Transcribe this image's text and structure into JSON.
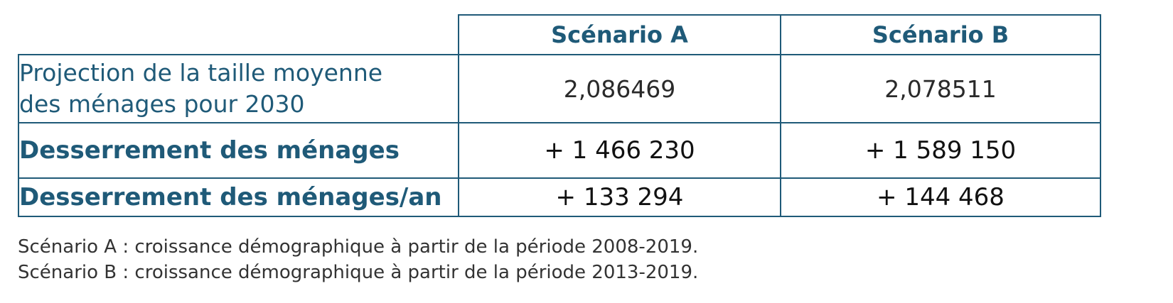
{
  "table": {
    "columns": [
      "Scénario A",
      "Scénario B"
    ],
    "rows": [
      {
        "label": "Projection de la taille moyenne des ménages pour 2030",
        "label_line1": "Projection de la taille moyenne",
        "label_line2": "des ménages pour 2030",
        "values": [
          "2,086469",
          "2,078511"
        ]
      },
      {
        "label": "Desserrement des ménages",
        "values": [
          "+ 1 466 230",
          "+ 1 589 150"
        ]
      },
      {
        "label": "Desserrement des ménages/an",
        "values": [
          "+ 133 294",
          "+ 144 468"
        ]
      }
    ]
  },
  "footnotes": [
    "Scénario A : croissance démographique à partir de la période 2008-2019.",
    "Scénario B : croissance démographique à partir de la période 2013-2019."
  ],
  "colors": {
    "accent": "#1f5a78",
    "text": "#1a1a1a",
    "footnote": "#333333"
  }
}
